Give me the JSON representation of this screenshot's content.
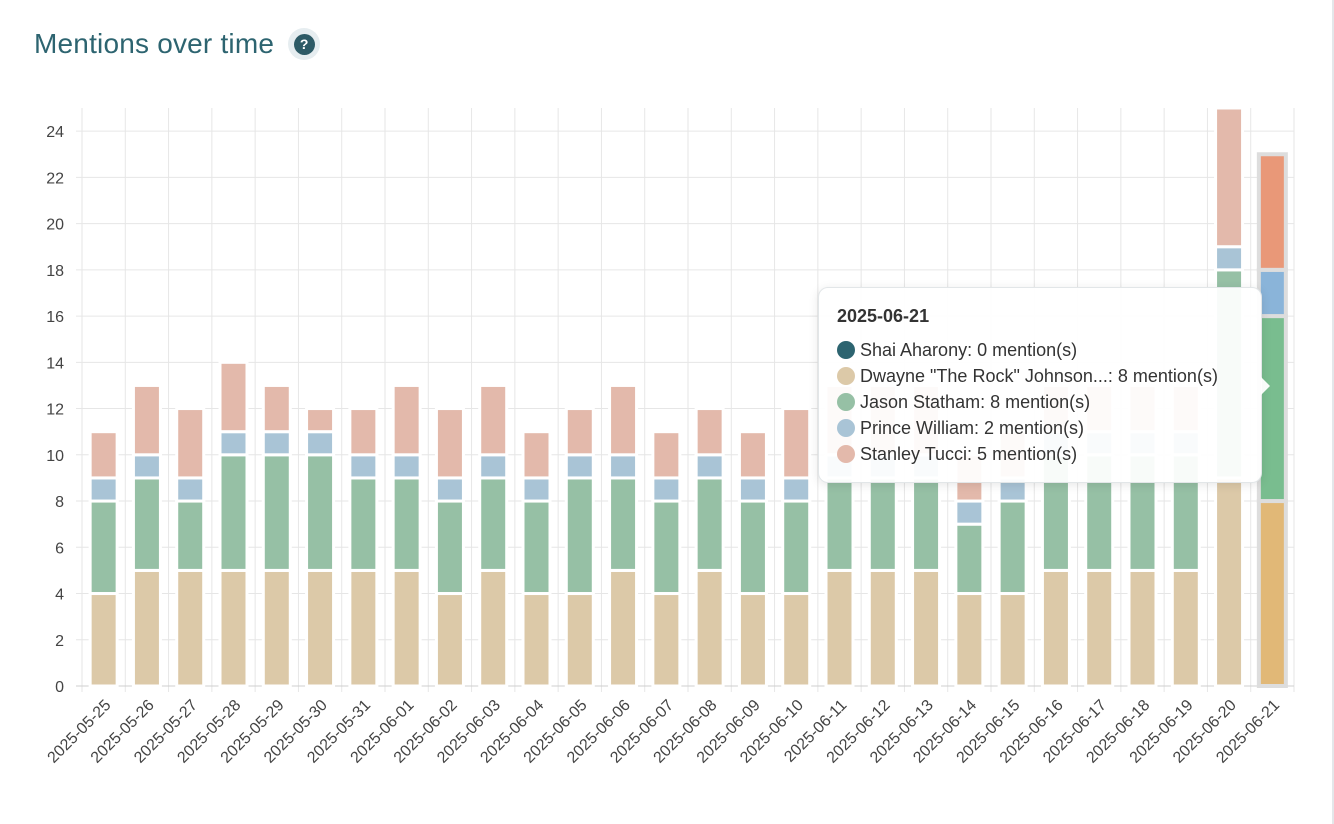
{
  "header": {
    "title": "Mentions over time",
    "help_icon": "question-circle-icon"
  },
  "chart_data": {
    "type": "bar",
    "stacked": true,
    "categories": [
      "2025-05-25",
      "2025-05-26",
      "2025-05-27",
      "2025-05-28",
      "2025-05-29",
      "2025-05-30",
      "2025-05-31",
      "2025-06-01",
      "2025-06-02",
      "2025-06-03",
      "2025-06-04",
      "2025-06-05",
      "2025-06-06",
      "2025-06-07",
      "2025-06-08",
      "2025-06-09",
      "2025-06-10",
      "2025-06-11",
      "2025-06-12",
      "2025-06-13",
      "2025-06-14",
      "2025-06-15",
      "2025-06-16",
      "2025-06-17",
      "2025-06-18",
      "2025-06-19",
      "2025-06-20",
      "2025-06-21"
    ],
    "series": [
      {
        "name": "Shai Aharony",
        "color": "#2d6470",
        "values": [
          0,
          0,
          0,
          0,
          0,
          0,
          0,
          0,
          0,
          0,
          0,
          0,
          0,
          0,
          0,
          0,
          0,
          0,
          0,
          0,
          0,
          0,
          0,
          0,
          0,
          0,
          0,
          0
        ]
      },
      {
        "name": "Dwayne \"The Rock\" Johnson",
        "color": "#dcc9a8",
        "values": [
          4,
          5,
          5,
          5,
          5,
          5,
          5,
          5,
          4,
          5,
          4,
          4,
          5,
          4,
          5,
          4,
          4,
          5,
          5,
          5,
          4,
          4,
          5,
          5,
          5,
          5,
          9,
          8
        ]
      },
      {
        "name": "Jason Statham",
        "color": "#96c0a5",
        "values": [
          4,
          4,
          3,
          5,
          5,
          5,
          4,
          4,
          4,
          4,
          4,
          5,
          4,
          4,
          4,
          4,
          4,
          4,
          4,
          4,
          3,
          4,
          5,
          5,
          5,
          5,
          9,
          8
        ]
      },
      {
        "name": "Prince William",
        "color": "#a9c4d6",
        "values": [
          1,
          1,
          1,
          1,
          1,
          1,
          1,
          1,
          1,
          1,
          1,
          1,
          1,
          1,
          1,
          1,
          1,
          1,
          1,
          1,
          1,
          1,
          1,
          1,
          1,
          1,
          1,
          2
        ]
      },
      {
        "name": "Stanley Tucci",
        "color": "#e3b9ab",
        "values": [
          2,
          3,
          3,
          3,
          2,
          1,
          2,
          3,
          3,
          3,
          2,
          2,
          3,
          2,
          2,
          2,
          3,
          3,
          3,
          3,
          2,
          2,
          2,
          2,
          2,
          2,
          6,
          5
        ]
      }
    ],
    "highlight_index": 27,
    "highlight_colors": [
      "#2d6470",
      "#e1b877",
      "#79bd8f",
      "#8ab4d9",
      "#e99878"
    ],
    "ylim": [
      0,
      25
    ],
    "yticks": [
      0,
      2,
      4,
      6,
      8,
      10,
      12,
      14,
      16,
      18,
      20,
      22,
      24
    ],
    "grid": true,
    "xlabel": "",
    "ylabel": ""
  },
  "tooltip": {
    "title": "2025-06-21",
    "rows": [
      {
        "label": "Shai Aharony: 0 mention(s)",
        "color": "#2d6470"
      },
      {
        "label": "Dwayne \"The Rock\" Johnson...: 8 mention(s)",
        "color": "#dcc9a8"
      },
      {
        "label": "Jason Statham: 8 mention(s)",
        "color": "#96c0a5"
      },
      {
        "label": "Prince William: 2 mention(s)",
        "color": "#a9c4d6"
      },
      {
        "label": "Stanley Tucci: 5 mention(s)",
        "color": "#e3b9ab"
      }
    ]
  }
}
